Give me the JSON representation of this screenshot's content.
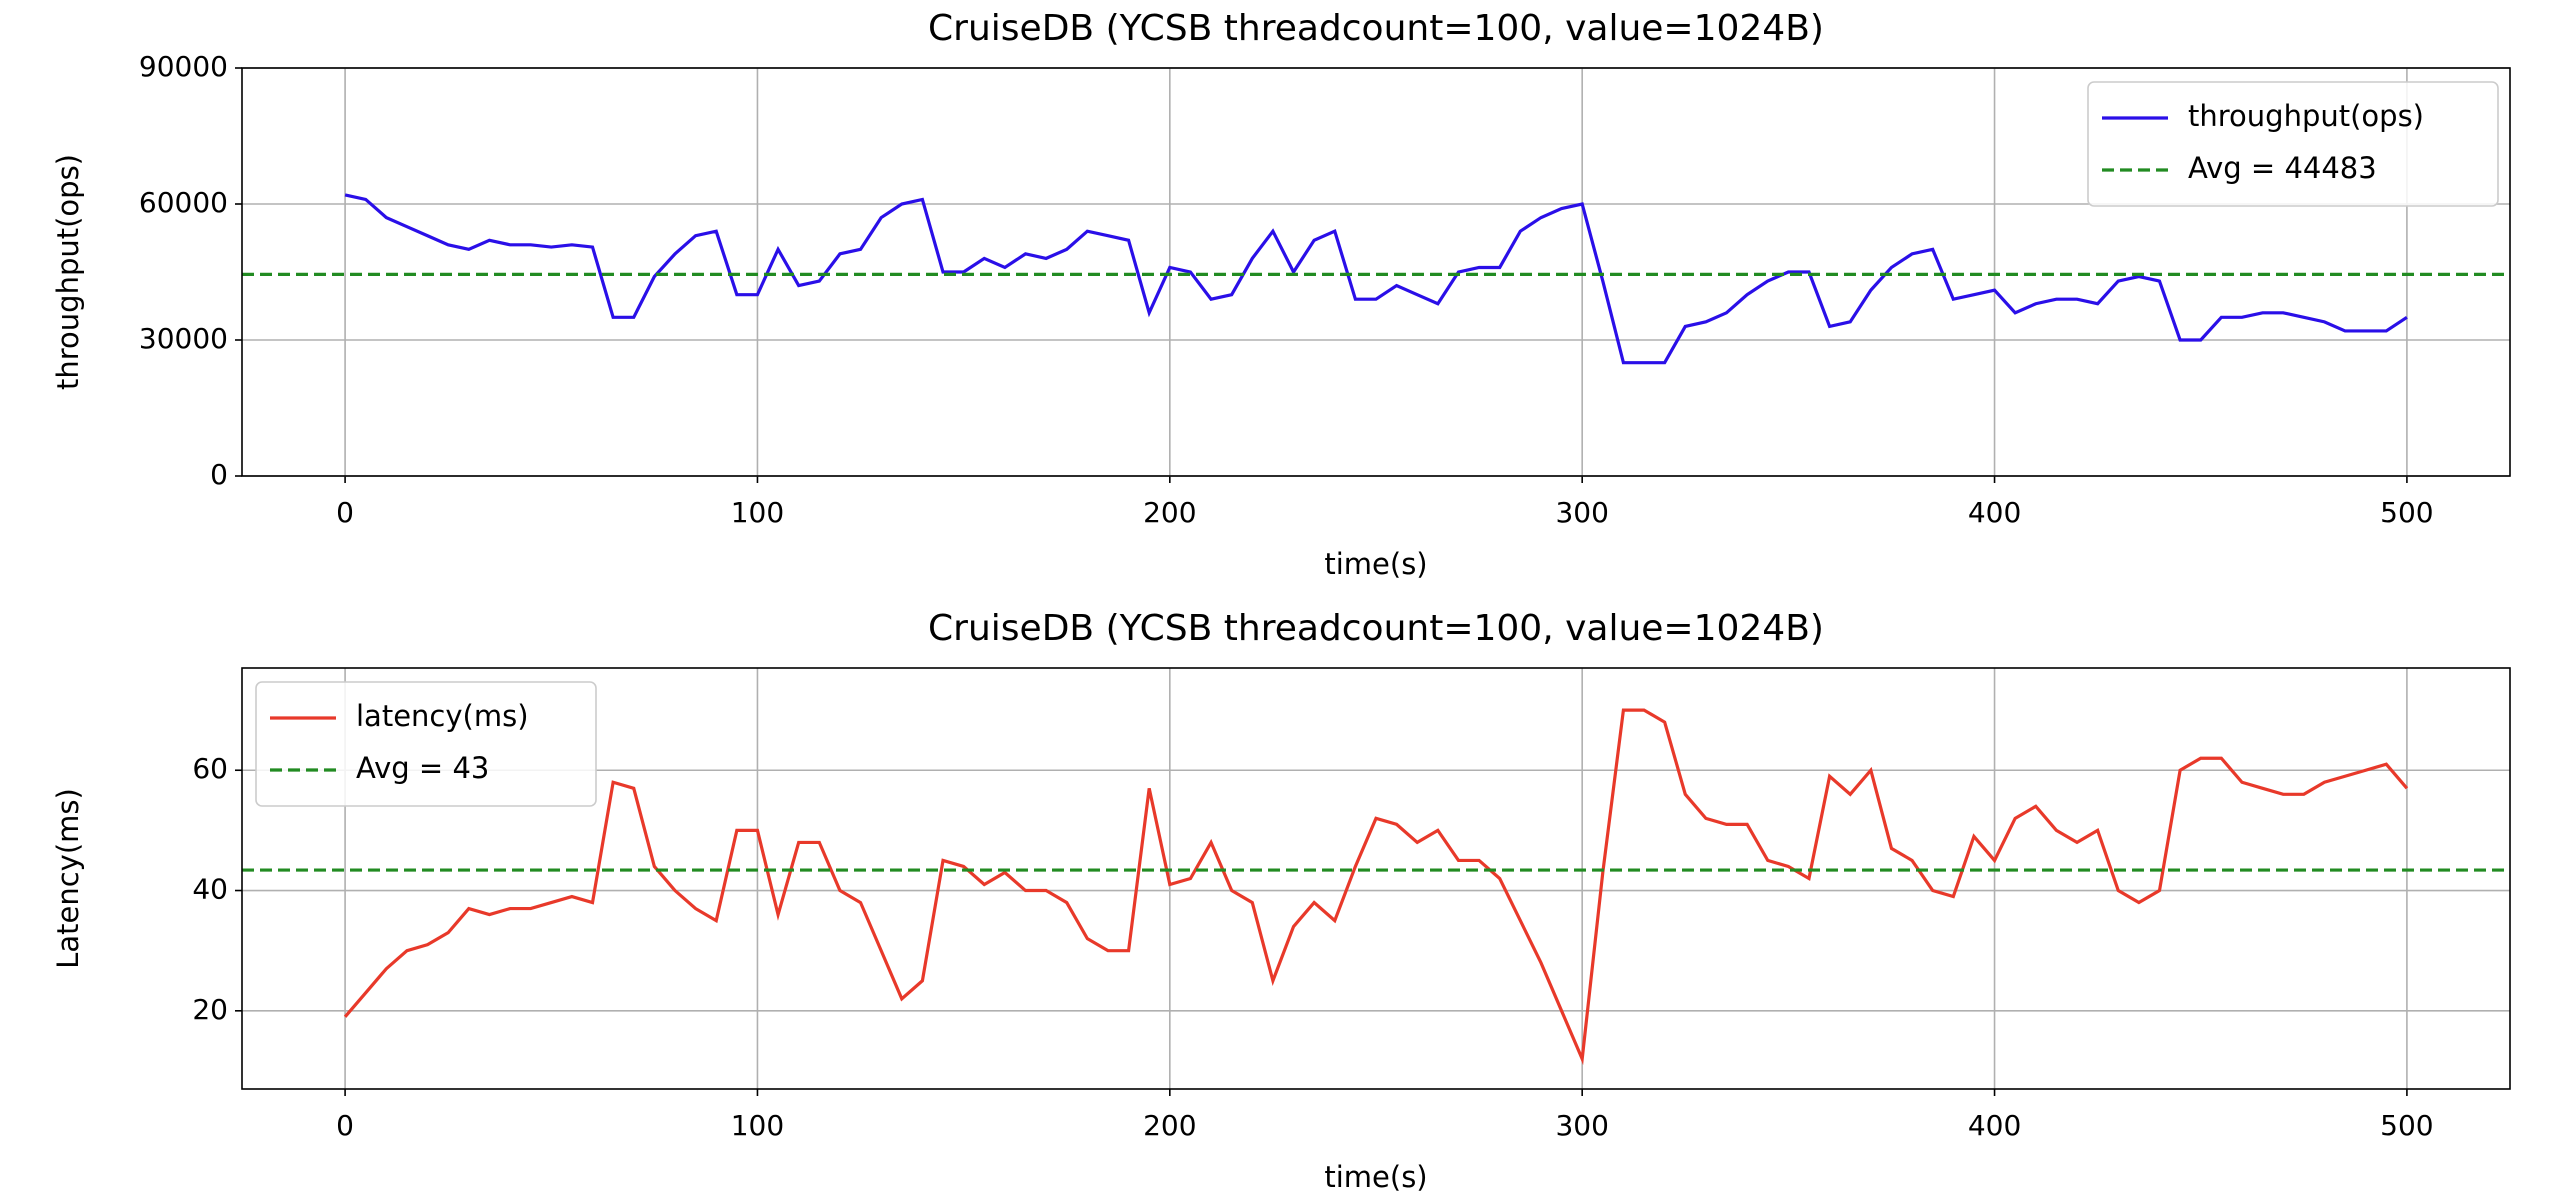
{
  "chart_data": [
    {
      "type": "line",
      "title": "CruiseDB (YCSB threadcount=100, value=1024B)",
      "xlabel": "time(s)",
      "ylabel": "throughput(ops)",
      "x": [
        0,
        5,
        10,
        15,
        20,
        25,
        30,
        35,
        40,
        45,
        50,
        55,
        60,
        65,
        70,
        75,
        80,
        85,
        90,
        95,
        100,
        105,
        110,
        115,
        120,
        125,
        130,
        135,
        140,
        145,
        150,
        155,
        160,
        165,
        170,
        175,
        180,
        185,
        190,
        195,
        200,
        205,
        210,
        215,
        220,
        225,
        230,
        235,
        240,
        245,
        250,
        255,
        260,
        265,
        270,
        275,
        280,
        285,
        290,
        295,
        300,
        305,
        310,
        315,
        320,
        325,
        330,
        335,
        340,
        345,
        350,
        355,
        360,
        365,
        370,
        375,
        380,
        385,
        390,
        395,
        400,
        405,
        410,
        415,
        420,
        425,
        430,
        435,
        440,
        445,
        450,
        455,
        460,
        465,
        470,
        475,
        480,
        485,
        490,
        495,
        500
      ],
      "series": [
        {
          "name": "throughput(ops)",
          "color": "#2a0fe8",
          "values": [
            62000,
            61000,
            57000,
            55000,
            53000,
            51000,
            50000,
            52000,
            51000,
            51000,
            50500,
            51000,
            50500,
            35000,
            35000,
            44000,
            49000,
            53000,
            54000,
            40000,
            40000,
            50000,
            42000,
            43000,
            49000,
            50000,
            57000,
            60000,
            61000,
            45000,
            45000,
            48000,
            46000,
            49000,
            48000,
            50000,
            54000,
            53000,
            52000,
            36000,
            46000,
            45000,
            39000,
            40000,
            48000,
            54000,
            45000,
            52000,
            54000,
            39000,
            39000,
            42000,
            40000,
            38000,
            45000,
            46000,
            46000,
            54000,
            57000,
            59000,
            60000,
            43000,
            25000,
            25000,
            25000,
            33000,
            34000,
            36000,
            40000,
            43000,
            45000,
            45000,
            33000,
            34000,
            41000,
            46000,
            49000,
            50000,
            39000,
            40000,
            41000,
            36000,
            38000,
            39000,
            39000,
            38000,
            43000,
            44000,
            43000,
            30000,
            30000,
            35000,
            35000,
            36000,
            36000,
            35000,
            34000,
            32000,
            32000,
            32000,
            35000
          ]
        }
      ],
      "avg_line": {
        "name": "Avg = 44483",
        "value": 44483,
        "color": "#228b22"
      },
      "xlim": [
        -25,
        525
      ],
      "ylim": [
        0,
        90000
      ],
      "xticks": [
        0,
        100,
        200,
        300,
        400,
        500
      ],
      "yticks": [
        0,
        30000,
        60000,
        90000
      ],
      "grid": true,
      "legend": "upper right"
    },
    {
      "type": "line",
      "title": "CruiseDB (YCSB threadcount=100, value=1024B)",
      "xlabel": "time(s)",
      "ylabel": "Latency(ms)",
      "x": [
        0,
        5,
        10,
        15,
        20,
        25,
        30,
        35,
        40,
        45,
        50,
        55,
        60,
        65,
        70,
        75,
        80,
        85,
        90,
        95,
        100,
        105,
        110,
        115,
        120,
        125,
        130,
        135,
        140,
        145,
        150,
        155,
        160,
        165,
        170,
        175,
        180,
        185,
        190,
        195,
        200,
        205,
        210,
        215,
        220,
        225,
        230,
        235,
        240,
        245,
        250,
        255,
        260,
        265,
        270,
        275,
        280,
        285,
        290,
        295,
        300,
        305,
        310,
        315,
        320,
        325,
        330,
        335,
        340,
        345,
        350,
        355,
        360,
        365,
        370,
        375,
        380,
        385,
        390,
        395,
        400,
        405,
        410,
        415,
        420,
        425,
        430,
        435,
        440,
        445,
        450,
        455,
        460,
        465,
        470,
        475,
        480,
        485,
        490,
        495,
        500
      ],
      "series": [
        {
          "name": "latency(ms)",
          "color": "#e8392a",
          "values": [
            19,
            23,
            27,
            30,
            31,
            33,
            37,
            36,
            37,
            37,
            38,
            39,
            38,
            58,
            57,
            44,
            40,
            37,
            35,
            50,
            50,
            36,
            48,
            48,
            40,
            38,
            30,
            22,
            25,
            45,
            44,
            41,
            43,
            40,
            40,
            38,
            32,
            30,
            30,
            57,
            41,
            42,
            48,
            40,
            38,
            25,
            34,
            38,
            35,
            44,
            52,
            51,
            48,
            50,
            45,
            45,
            42,
            35,
            28,
            20,
            12,
            43,
            70,
            70,
            68,
            56,
            52,
            51,
            51,
            45,
            44,
            42,
            59,
            56,
            60,
            47,
            45,
            40,
            39,
            49,
            45,
            52,
            54,
            50,
            48,
            50,
            40,
            38,
            40,
            60,
            62,
            62,
            58,
            57,
            56,
            56,
            58,
            59,
            60,
            61,
            57
          ]
        }
      ],
      "avg_line": {
        "name": "Avg = 43",
        "value": 43.4,
        "color": "#228b22"
      },
      "xlim": [
        -25,
        525
      ],
      "ylim": [
        7,
        77
      ],
      "xticks": [
        0,
        100,
        200,
        300,
        400,
        500
      ],
      "yticks": [
        20,
        40,
        60
      ],
      "grid": true,
      "legend": "upper left"
    }
  ]
}
